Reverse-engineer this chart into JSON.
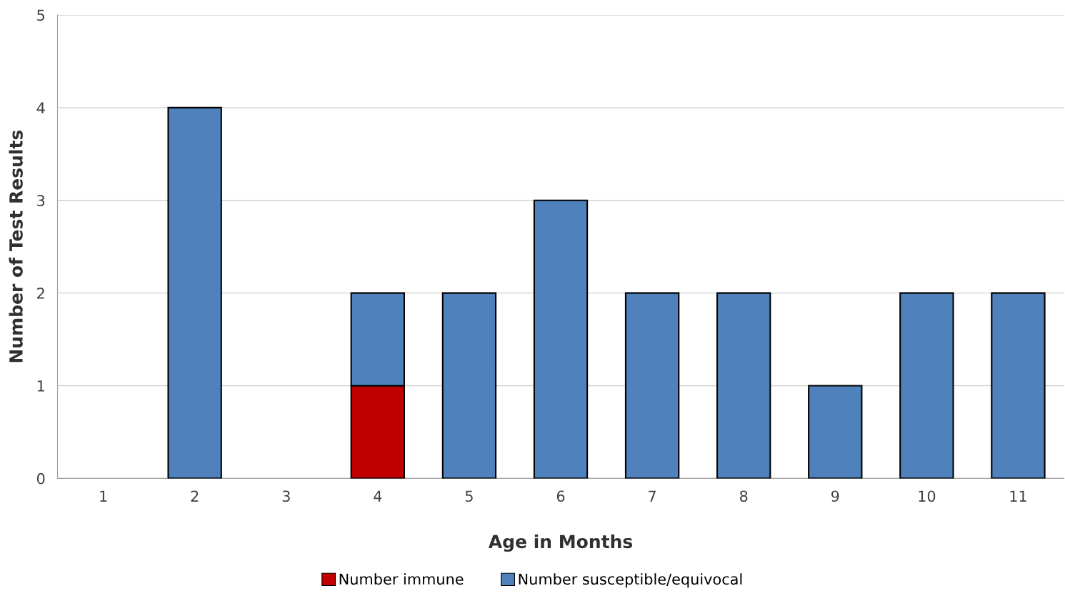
{
  "chart_data": {
    "type": "bar",
    "stacked": true,
    "xlabel": "Age in Months",
    "ylabel": "Number of Test Results",
    "categories": [
      "1",
      "2",
      "3",
      "4",
      "5",
      "6",
      "7",
      "8",
      "9",
      "10",
      "11"
    ],
    "series": [
      {
        "name": "Number immune",
        "color": "#c00000",
        "values": [
          0,
          0,
          0,
          1,
          0,
          0,
          0,
          0,
          0,
          0,
          0
        ]
      },
      {
        "name": "Number susceptible/equivocal",
        "color": "#4f81bd",
        "values": [
          0,
          4,
          0,
          1,
          2,
          3,
          2,
          2,
          1,
          2,
          2
        ]
      }
    ],
    "ylim": [
      0,
      5
    ],
    "yticks": [
      0,
      1,
      2,
      3,
      4,
      5
    ],
    "grid": "y",
    "legend": "bottom"
  }
}
